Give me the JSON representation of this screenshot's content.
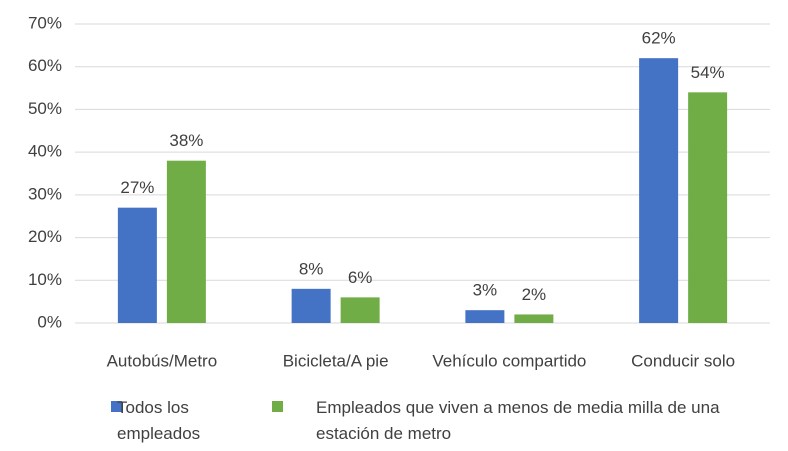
{
  "chart_data": {
    "type": "bar",
    "categories": [
      "Autobús/Metro",
      "Bicicleta/A pie",
      "Vehículo compartido",
      "Conducir solo"
    ],
    "series": [
      {
        "name": "Todos los empleados",
        "color": "#4472c4",
        "values": [
          27,
          8,
          3,
          62
        ],
        "value_labels": [
          "27%",
          "8%",
          "3%",
          "62%"
        ]
      },
      {
        "name": "Empleados que viven a menos de media milla de una estación de metro",
        "color": "#70ad47",
        "values": [
          38,
          6,
          2,
          54
        ],
        "value_labels": [
          "38%",
          "6%",
          "2%",
          "54%"
        ]
      }
    ],
    "ylim": [
      0,
      70
    ],
    "yticks": [
      {
        "value": 0,
        "label": "0%"
      },
      {
        "value": 10,
        "label": "10%"
      },
      {
        "value": 20,
        "label": "20%"
      },
      {
        "value": 30,
        "label": "30%"
      },
      {
        "value": 40,
        "label": "40%"
      },
      {
        "value": 50,
        "label": "50%"
      },
      {
        "value": 60,
        "label": "60%"
      },
      {
        "value": 70,
        "label": "70%"
      }
    ],
    "grid": true,
    "legend": "bottom"
  }
}
